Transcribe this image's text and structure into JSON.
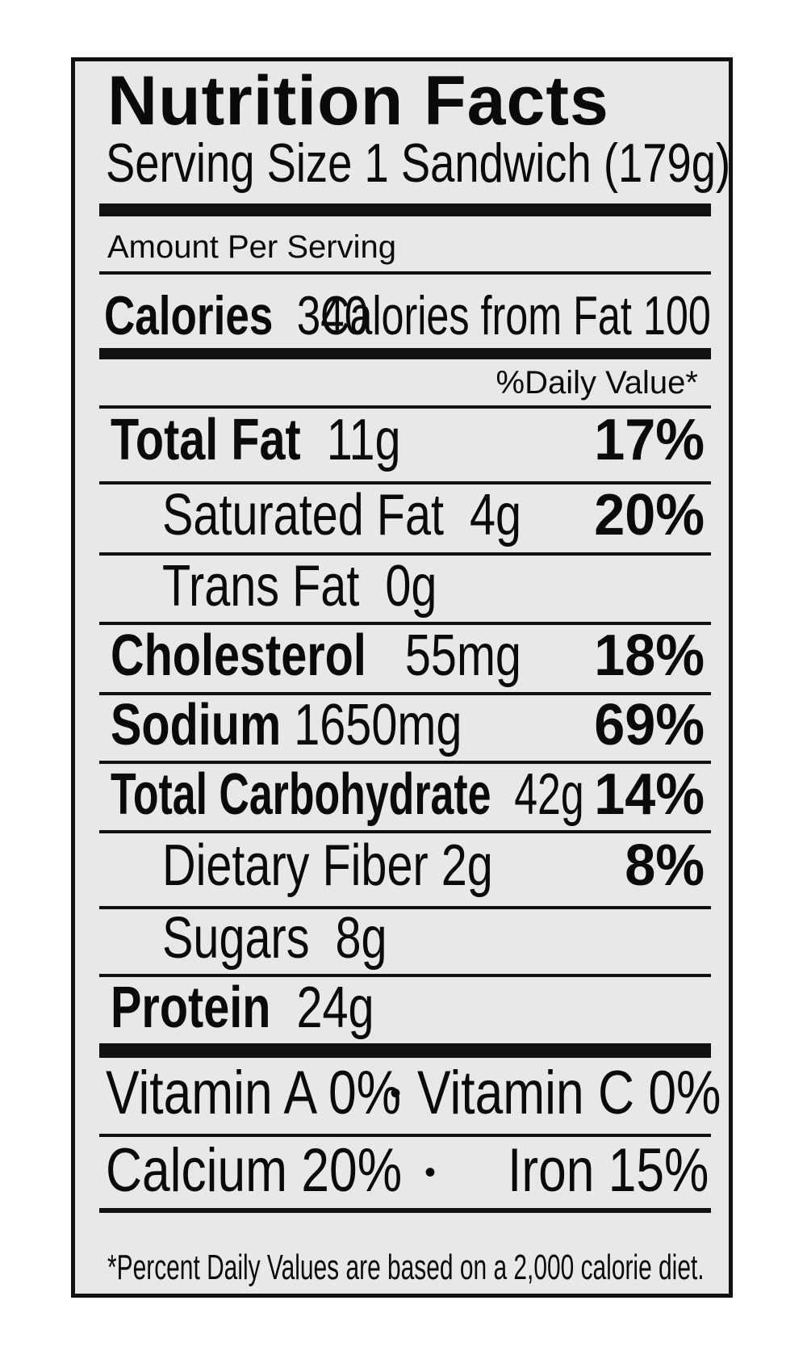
{
  "title": "Nutrition Facts",
  "serving_size": "Serving Size 1 Sandwich (179g)",
  "amount_per_serving": "Amount Per Serving",
  "calories": {
    "label": "Calories",
    "value": "340",
    "from_fat": "Calories from Fat 100"
  },
  "daily_value_header": "%Daily Value*",
  "nutrients": {
    "total_fat": {
      "label": "Total Fat",
      "amount": "11g",
      "dv": "17%"
    },
    "saturated_fat": {
      "label": "Saturated Fat",
      "amount": "4g",
      "dv": "20%"
    },
    "trans_fat": {
      "label": "Trans Fat",
      "amount": "0g"
    },
    "cholesterol": {
      "label": "Cholesterol",
      "amount": "55mg",
      "dv": "18%"
    },
    "sodium": {
      "label": "Sodium",
      "amount": "1650mg",
      "dv": "69%"
    },
    "total_carbohydrate": {
      "label": "Total Carbohydrate",
      "amount": "42g",
      "dv": "14%"
    },
    "dietary_fiber": {
      "label": "Dietary Fiber",
      "amount": "2g",
      "dv": "8%"
    },
    "sugars": {
      "label": "Sugars",
      "amount": "8g"
    },
    "protein": {
      "label": "Protein",
      "amount": "24g"
    }
  },
  "vitamins": {
    "vitamin_a": "Vitamin A 0%",
    "vitamin_c": "Vitamin C 0%",
    "calcium": "Calcium 20%",
    "iron": "Iron 15%",
    "separator": "•"
  },
  "footnote": "*Percent  Daily Values are based on a 2,000 calorie diet."
}
